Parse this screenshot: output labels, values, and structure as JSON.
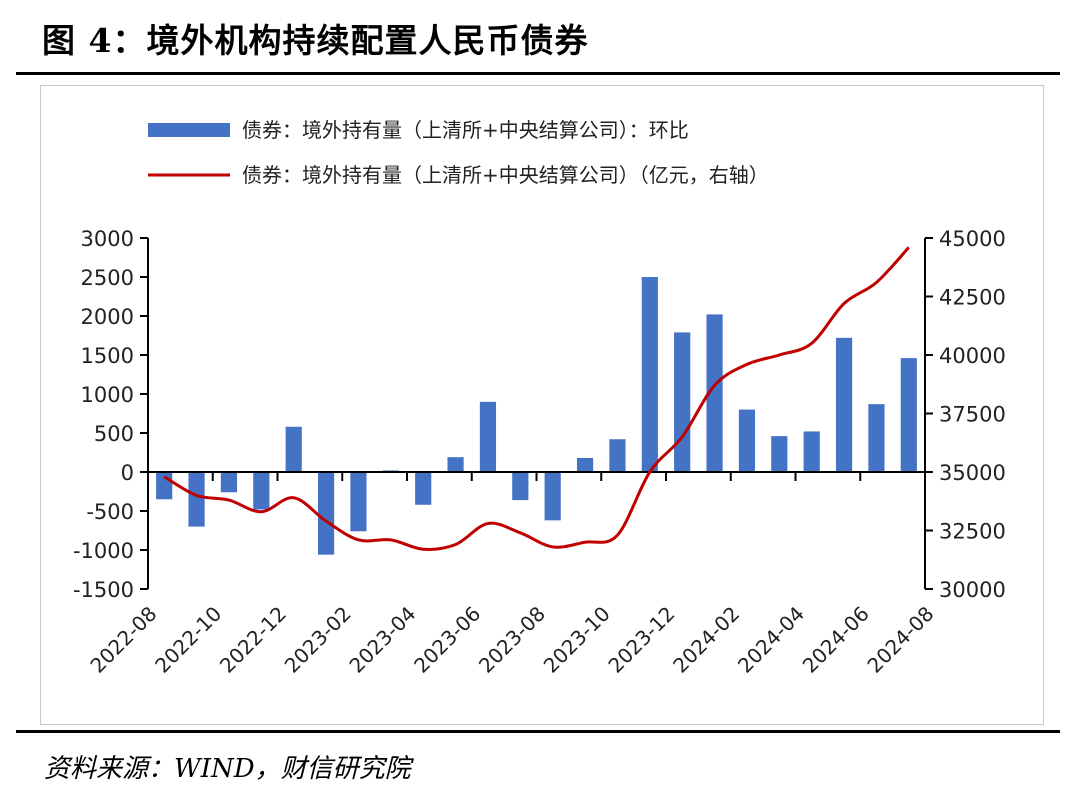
{
  "title": "图 4：境外机构持续配置人民币债券",
  "source": "资料来源：WIND，财信研究院",
  "chart_data": {
    "type": "bar+line",
    "legend": [
      "债券：境外持有量（上清所+中央结算公司）：环比",
      "债券：境外持有量（上清所+中央结算公司）（亿元，右轴）"
    ],
    "legend_position": "top",
    "months": [
      "2022-08",
      "2022-09",
      "2022-10",
      "2022-11",
      "2022-12",
      "2023-01",
      "2023-02",
      "2023-03",
      "2023-04",
      "2023-05",
      "2023-06",
      "2023-07",
      "2023-08",
      "2023-09",
      "2023-10",
      "2023-11",
      "2023-12",
      "2024-01",
      "2024-02",
      "2024-03",
      "2024-04",
      "2024-05",
      "2024-06",
      "2024-07"
    ],
    "xtick_labels": [
      "2022-08",
      "2022-10",
      "2022-12",
      "2023-02",
      "2023-04",
      "2023-06",
      "2023-08",
      "2023-10",
      "2023-12",
      "2024-02",
      "2024-04",
      "2024-06",
      "2024-08"
    ],
    "series": [
      {
        "name": "环比",
        "axis": "left",
        "type": "bar",
        "color": "#4472C4",
        "values": [
          -350,
          -700,
          -260,
          -480,
          580,
          -1060,
          -760,
          20,
          -420,
          190,
          900,
          -360,
          -620,
          180,
          420,
          2500,
          1790,
          2020,
          800,
          460,
          520,
          1720,
          870,
          1460
        ]
      },
      {
        "name": "持有量",
        "axis": "right",
        "type": "line",
        "color": "#C00000",
        "values": [
          34800,
          34000,
          33800,
          33300,
          33900,
          32900,
          32100,
          32100,
          31700,
          31900,
          32800,
          32400,
          31800,
          32000,
          32300,
          35000,
          36500,
          38700,
          39600,
          40000,
          40500,
          42200,
          43100,
          44600
        ]
      }
    ],
    "ylim_left": [
      -1500,
      3000
    ],
    "yticks_left": [
      3000,
      2500,
      2000,
      1500,
      1000,
      500,
      0,
      -500,
      -1000,
      -1500
    ],
    "ylim_right": [
      30000,
      45000
    ],
    "yticks_right": [
      45000,
      42500,
      40000,
      37500,
      35000,
      32500,
      30000
    ]
  }
}
